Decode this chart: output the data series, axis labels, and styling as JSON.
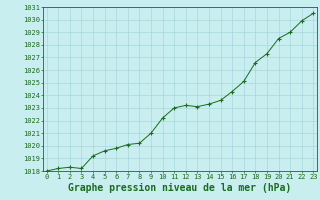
{
  "x": [
    0,
    1,
    2,
    3,
    4,
    5,
    6,
    7,
    8,
    9,
    10,
    11,
    12,
    13,
    14,
    15,
    16,
    17,
    18,
    19,
    20,
    21,
    22,
    23
  ],
  "y": [
    1018.0,
    1018.2,
    1018.3,
    1018.2,
    1019.2,
    1019.6,
    1019.8,
    1020.1,
    1020.2,
    1021.0,
    1022.2,
    1023.0,
    1023.2,
    1023.1,
    1023.3,
    1023.6,
    1024.3,
    1025.1,
    1026.6,
    1027.3,
    1028.5,
    1029.0,
    1029.9,
    1030.5
  ],
  "ylim": [
    1018,
    1031
  ],
  "xlim": [
    -0.3,
    23.3
  ],
  "yticks": [
    1018,
    1019,
    1020,
    1021,
    1022,
    1023,
    1024,
    1025,
    1026,
    1027,
    1028,
    1029,
    1030,
    1031
  ],
  "xticks": [
    0,
    1,
    2,
    3,
    4,
    5,
    6,
    7,
    8,
    9,
    10,
    11,
    12,
    13,
    14,
    15,
    16,
    17,
    18,
    19,
    20,
    21,
    22,
    23
  ],
  "line_color": "#1a6b1a",
  "marker": "+",
  "marker_size": 3,
  "bg_color": "#c8eef0",
  "grid_color": "#a8d8dc",
  "xlabel": "Graphe pression niveau de la mer (hPa)",
  "xlabel_color": "#1a6b1a",
  "tick_color": "#1a6b1a",
  "tick_label_color": "#1a6b1a",
  "tick_fontsize": 5,
  "xlabel_fontsize": 7
}
